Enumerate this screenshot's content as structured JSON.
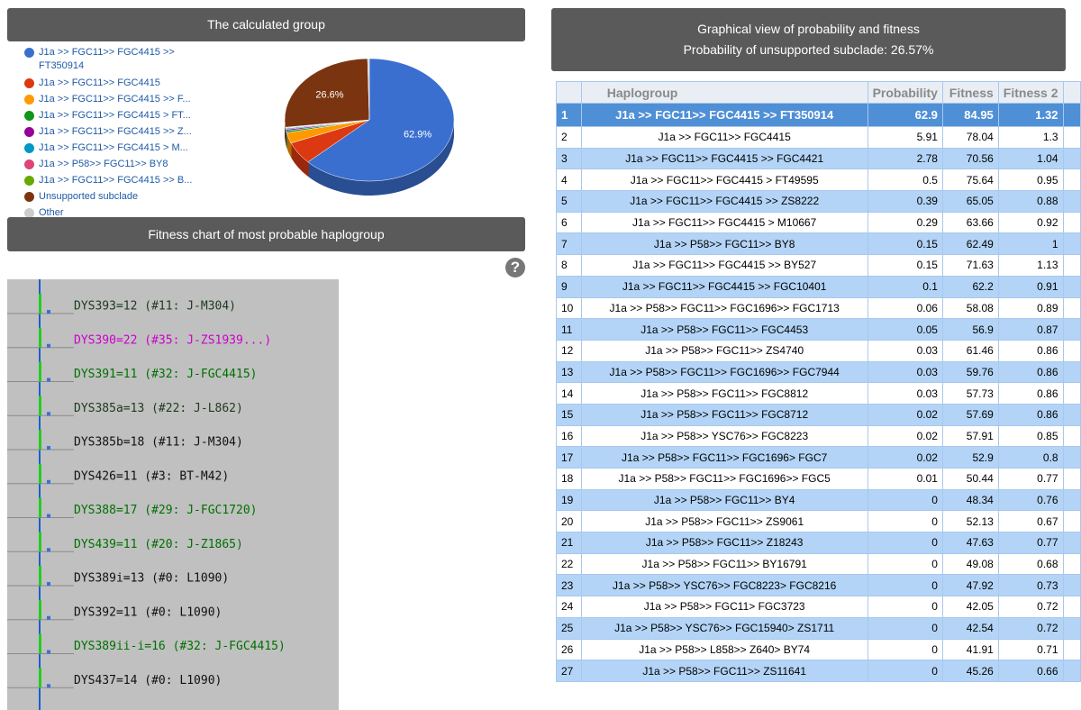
{
  "left_header": "The calculated group",
  "pie": {
    "type": "pie",
    "slices": [
      {
        "label": "J1a >> FGC11>> FGC4415 >> FT350914",
        "color": "#3a6fcf",
        "value": 62.9,
        "value_label": "62.9%"
      },
      {
        "label": "J1a >> FGC11>> FGC4415",
        "color": "#dc3912",
        "value": 5.91
      },
      {
        "label": "J1a >> FGC11>> FGC4415 >> F...",
        "color": "#ff9900",
        "value": 2.78
      },
      {
        "label": "J1a >> FGC11>> FGC4415 > FT...",
        "color": "#109618",
        "value": 0.5
      },
      {
        "label": "J1a >> FGC11>> FGC4415 >> Z...",
        "color": "#990099",
        "value": 0.39
      },
      {
        "label": "J1a >> FGC11>> FGC4415 > M...",
        "color": "#0099c6",
        "value": 0.29
      },
      {
        "label": "J1a >> P58>> FGC11>> BY8",
        "color": "#dd4477",
        "value": 0.15
      },
      {
        "label": "J1a >> FGC11>> FGC4415 >> B...",
        "color": "#66aa00",
        "value": 0.15
      },
      {
        "label": "Unsupported subclade",
        "color": "#7a3410",
        "value": 26.6,
        "value_label": "26.6%"
      },
      {
        "label": "Other",
        "color": "#cccccc",
        "value": 0.33
      }
    ]
  },
  "fitness_header": "Fitness chart of most probable haplogroup",
  "help": "?",
  "fitness_chart": {
    "rows": [
      {
        "label": "DYS393=12 (#11: J-M304)",
        "color": "#1e3a1e"
      },
      {
        "label": "DYS390=22 (#35: J-ZS1939...)",
        "color": "#cc00cc"
      },
      {
        "label": "DYS391=11 (#32: J-FGC4415)",
        "color": "#007000"
      },
      {
        "label": "DYS385a=13 (#22: J-L862)",
        "color": "#1e3a1e"
      },
      {
        "label": "DYS385b=18 (#11: J-M304)",
        "color": "#111111"
      },
      {
        "label": "DYS426=11 (#3: BT-M42)",
        "color": "#111111"
      },
      {
        "label": "DYS388=17 (#29: J-FGC1720)",
        "color": "#007000"
      },
      {
        "label": "DYS439=11 (#20: J-Z1865)",
        "color": "#007000"
      },
      {
        "label": "DYS389i=13 (#0: L1090)",
        "color": "#111111"
      },
      {
        "label": "DYS392=11 (#0: L1090)",
        "color": "#111111"
      },
      {
        "label": "DYS389ii-i=16 (#32: J-FGC4415)",
        "color": "#007000"
      },
      {
        "label": "DYS437=14 (#0: L1090)",
        "color": "#111111"
      }
    ]
  },
  "right_header": {
    "title": "Graphical view of probability and fitness",
    "subtitle": "Probability of unsupported subclade: 26.57%"
  },
  "table": {
    "columns": [
      "Haplogroup",
      "Probability",
      "Fitness",
      "Fitness 2"
    ],
    "rows": [
      [
        1,
        "J1a >> FGC11>> FGC4415 >> FT350914",
        62.9,
        84.95,
        1.32
      ],
      [
        2,
        "J1a >> FGC11>> FGC4415",
        5.91,
        78.04,
        1.3
      ],
      [
        3,
        "J1a >> FGC11>> FGC4415 >> FGC4421",
        2.78,
        70.56,
        1.04
      ],
      [
        4,
        "J1a >> FGC11>> FGC4415 > FT49595",
        0.5,
        75.64,
        0.95
      ],
      [
        5,
        "J1a >> FGC11>> FGC4415 >> ZS8222",
        0.39,
        65.05,
        0.88
      ],
      [
        6,
        "J1a >> FGC11>> FGC4415 > M10667",
        0.29,
        63.66,
        0.92
      ],
      [
        7,
        "J1a >> P58>> FGC11>> BY8",
        0.15,
        62.49,
        1
      ],
      [
        8,
        "J1a >> FGC11>> FGC4415 >> BY527",
        0.15,
        71.63,
        1.13
      ],
      [
        9,
        "J1a >> FGC11>> FGC4415 >> FGC10401",
        0.1,
        62.2,
        0.91
      ],
      [
        10,
        "J1a >> P58>> FGC11>> FGC1696>> FGC1713",
        0.06,
        58.08,
        0.89
      ],
      [
        11,
        "J1a >> P58>> FGC11>> FGC4453",
        0.05,
        56.9,
        0.87
      ],
      [
        12,
        "J1a >> P58>> FGC11>> ZS4740",
        0.03,
        61.46,
        0.86
      ],
      [
        13,
        "J1a >> P58>> FGC11>> FGC1696>> FGC7944",
        0.03,
        59.76,
        0.86
      ],
      [
        14,
        "J1a >> P58>> FGC11>> FGC8812",
        0.03,
        57.73,
        0.86
      ],
      [
        15,
        "J1a >> P58>> FGC11>> FGC8712",
        0.02,
        57.69,
        0.86
      ],
      [
        16,
        "J1a >> P58>> YSC76>> FGC8223",
        0.02,
        57.91,
        0.85
      ],
      [
        17,
        "J1a >> P58>> FGC11>> FGC1696> FGC7",
        0.02,
        52.9,
        0.8
      ],
      [
        18,
        "J1a >> P58>> FGC11>> FGC1696>> FGC5",
        0.01,
        50.44,
        0.77
      ],
      [
        19,
        "J1a >> P58>> FGC11>> BY4",
        0,
        48.34,
        0.76
      ],
      [
        20,
        "J1a >> P58>> FGC11>> ZS9061",
        0,
        52.13,
        0.67
      ],
      [
        21,
        "J1a >> P58>> FGC11>> Z18243",
        0,
        47.63,
        0.77
      ],
      [
        22,
        "J1a >> P58>> FGC11>> BY16791",
        0,
        49.08,
        0.68
      ],
      [
        23,
        "J1a >> P58>> YSC76>> FGC8223> FGC8216",
        0,
        47.92,
        0.73
      ],
      [
        24,
        "J1a >> P58>> FGC11> FGC3723",
        0,
        42.05,
        0.72
      ],
      [
        25,
        "J1a >> P58>> YSC76>> FGC15940> ZS1711",
        0,
        42.54,
        0.72
      ],
      [
        26,
        "J1a >> P58>> L858>> Z640> BY74",
        0,
        41.91,
        0.71
      ],
      [
        27,
        "J1a >> P58>> FGC11>> ZS11641",
        0,
        45.26,
        0.66
      ]
    ]
  }
}
